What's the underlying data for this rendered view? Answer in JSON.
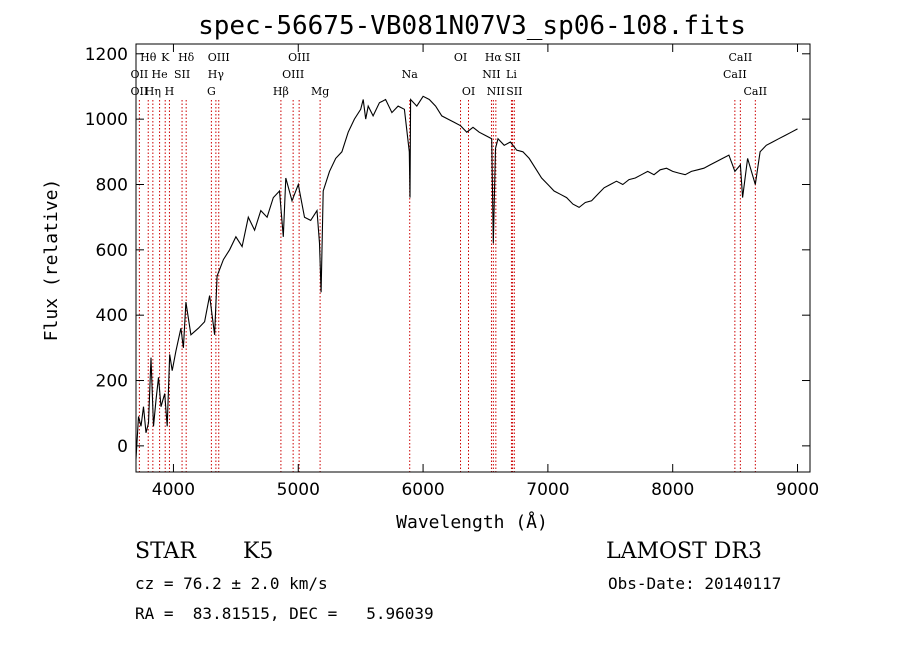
{
  "chart_data": {
    "type": "line",
    "title": "spec-56675-VB081N07V3_sp06-108.fits",
    "xlabel": "Wavelength (Å)",
    "ylabel": "Flux (relative)",
    "xlim": [
      3700,
      9100
    ],
    "ylim": [
      -80,
      1230
    ],
    "x_ticks": [
      4000,
      5000,
      6000,
      7000,
      8000,
      9000
    ],
    "y_ticks": [
      0,
      200,
      400,
      600,
      800,
      1000,
      1200
    ],
    "series": [
      {
        "name": "flux",
        "x": [
          3700,
          3720,
          3740,
          3760,
          3780,
          3800,
          3820,
          3840,
          3860,
          3880,
          3900,
          3930,
          3950,
          3970,
          3990,
          4020,
          4060,
          4080,
          4100,
          4140,
          4200,
          4250,
          4290,
          4330,
          4350,
          4400,
          4450,
          4500,
          4550,
          4600,
          4650,
          4700,
          4750,
          4800,
          4850,
          4880,
          4900,
          4950,
          5000,
          5050,
          5100,
          5150,
          5170,
          5183,
          5200,
          5250,
          5300,
          5350,
          5400,
          5450,
          5500,
          5520,
          5540,
          5560,
          5600,
          5650,
          5700,
          5750,
          5800,
          5850,
          5890,
          5895,
          5900,
          5950,
          6000,
          6050,
          6100,
          6150,
          6200,
          6250,
          6300,
          6350,
          6400,
          6450,
          6500,
          6550,
          6563,
          6580,
          6600,
          6650,
          6700,
          6750,
          6800,
          6850,
          6900,
          6950,
          7000,
          7050,
          7100,
          7150,
          7200,
          7250,
          7300,
          7350,
          7400,
          7450,
          7500,
          7550,
          7600,
          7650,
          7700,
          7750,
          7800,
          7850,
          7900,
          7950,
          8000,
          8050,
          8100,
          8150,
          8200,
          8250,
          8300,
          8350,
          8400,
          8450,
          8498,
          8542,
          8560,
          8600,
          8662,
          8700,
          8750,
          8800,
          8850,
          8900,
          8950,
          9000
        ],
        "values": [
          -40,
          90,
          60,
          120,
          40,
          70,
          270,
          60,
          140,
          210,
          120,
          160,
          60,
          280,
          230,
          290,
          360,
          300,
          440,
          340,
          360,
          380,
          460,
          340,
          520,
          570,
          600,
          640,
          610,
          700,
          660,
          720,
          700,
          760,
          780,
          640,
          820,
          750,
          800,
          700,
          690,
          720,
          620,
          470,
          780,
          840,
          880,
          900,
          960,
          1000,
          1030,
          1060,
          1000,
          1040,
          1010,
          1050,
          1060,
          1020,
          1040,
          1030,
          900,
          760,
          1060,
          1040,
          1070,
          1060,
          1040,
          1010,
          1000,
          990,
          980,
          960,
          975,
          960,
          950,
          940,
          620,
          910,
          940,
          920,
          930,
          905,
          900,
          880,
          850,
          820,
          800,
          780,
          770,
          760,
          740,
          730,
          745,
          750,
          770,
          790,
          800,
          810,
          800,
          815,
          820,
          830,
          840,
          830,
          845,
          850,
          840,
          835,
          830,
          840,
          845,
          850,
          860,
          870,
          880,
          890,
          840,
          860,
          760,
          880,
          800,
          900,
          920,
          930,
          940,
          950,
          960,
          970
        ]
      }
    ],
    "lines": [
      {
        "label": "Hθ",
        "wl": 3798,
        "row": 0
      },
      {
        "label": "K",
        "wl": 3934,
        "row": 0
      },
      {
        "label": "Hδ",
        "wl": 4102,
        "row": 0
      },
      {
        "label": "OIII",
        "wl": 4363,
        "row": 0
      },
      {
        "label": "OIII",
        "wl": 5007,
        "row": 0
      },
      {
        "label": "OI",
        "wl": 6300,
        "row": 0
      },
      {
        "label": "Hα",
        "wl": 6563,
        "row": 0
      },
      {
        "label": "SII",
        "wl": 6717,
        "row": 0
      },
      {
        "label": "CaII",
        "wl": 8542,
        "row": 0
      },
      {
        "label": "OII",
        "wl": 3727,
        "row": 1
      },
      {
        "label": "He",
        "wl": 3889,
        "row": 1
      },
      {
        "label": "SII",
        "wl": 4069,
        "row": 1
      },
      {
        "label": "Hγ",
        "wl": 4340,
        "row": 1
      },
      {
        "label": "OIII",
        "wl": 4959,
        "row": 1
      },
      {
        "label": "Na",
        "wl": 5893,
        "row": 1
      },
      {
        "label": "NII",
        "wl": 6548,
        "row": 1
      },
      {
        "label": "Li",
        "wl": 6708,
        "row": 1
      },
      {
        "label": "CaII",
        "wl": 8498,
        "row": 1
      },
      {
        "label": "OII",
        "wl": 3727,
        "row": 2
      },
      {
        "label": "Hη",
        "wl": 3835,
        "row": 2
      },
      {
        "label": "H",
        "wl": 3968,
        "row": 2
      },
      {
        "label": "G",
        "wl": 4304,
        "row": 2
      },
      {
        "label": "Hβ",
        "wl": 4861,
        "row": 2
      },
      {
        "label": "Mg",
        "wl": 5175,
        "row": 2
      },
      {
        "label": "OI",
        "wl": 6364,
        "row": 2
      },
      {
        "label": "NII",
        "wl": 6583,
        "row": 2
      },
      {
        "label": "SII",
        "wl": 6731,
        "row": 2
      },
      {
        "label": "CaII",
        "wl": 8662,
        "row": 2
      }
    ]
  },
  "info": {
    "object_type": "STAR",
    "subclass": "K5",
    "survey": "LAMOST DR3",
    "redshift": "cz = 76.2 ± 2.0 km/s",
    "obs_date": "Obs-Date: 20140117",
    "coords": "RA =  83.81515, DEC =   5.96039"
  },
  "colors": {
    "spectrum": "#000000",
    "marker": "#cc0000"
  }
}
